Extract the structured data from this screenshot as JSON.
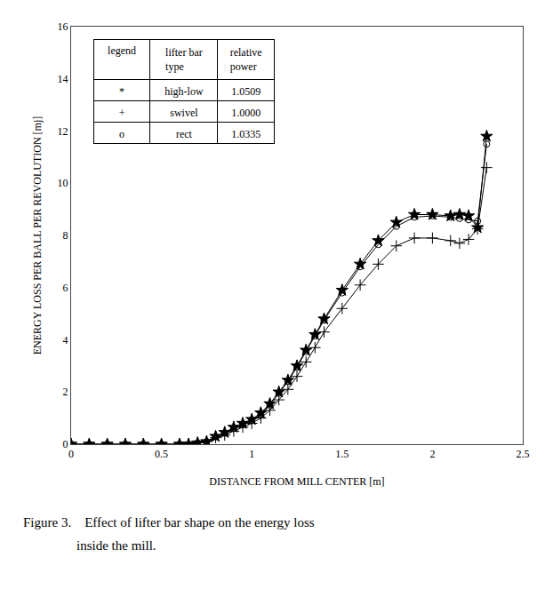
{
  "chart_data": {
    "type": "line",
    "xlabel": "DISTANCE FROM MILL CENTER [m]",
    "ylabel": "ENERGY LOSS PER BALL PER REVOLUTION [mj]",
    "xlim": [
      0,
      2.5
    ],
    "ylim": [
      0,
      16
    ],
    "xticks": [
      0,
      0.5,
      1,
      1.5,
      2,
      2.5
    ],
    "yticks": [
      0,
      2,
      4,
      6,
      8,
      10,
      12,
      14,
      16
    ],
    "grid": false,
    "color": "#000000",
    "x": [
      0.0,
      0.1,
      0.2,
      0.3,
      0.4,
      0.5,
      0.6,
      0.65,
      0.7,
      0.75,
      0.8,
      0.85,
      0.9,
      0.95,
      1.0,
      1.05,
      1.1,
      1.15,
      1.2,
      1.25,
      1.3,
      1.35,
      1.4,
      1.5,
      1.6,
      1.7,
      1.8,
      1.9,
      2.0,
      2.1,
      2.15,
      2.2,
      2.25,
      2.3
    ],
    "series": [
      {
        "marker": "star",
        "values": [
          0.0,
          0.0,
          0.0,
          0.0,
          0.0,
          0.0,
          0.0,
          0.0,
          0.05,
          0.1,
          0.3,
          0.45,
          0.65,
          0.8,
          0.95,
          1.2,
          1.55,
          2.0,
          2.45,
          3.0,
          3.6,
          4.2,
          4.8,
          5.9,
          6.9,
          7.8,
          8.5,
          8.8,
          8.8,
          8.75,
          8.8,
          8.75,
          8.3,
          11.8
        ]
      },
      {
        "marker": "plus",
        "values": [
          0.0,
          0.0,
          0.0,
          0.0,
          0.0,
          0.0,
          0.0,
          0.0,
          0.05,
          0.1,
          0.25,
          0.35,
          0.5,
          0.65,
          0.8,
          1.0,
          1.3,
          1.7,
          2.1,
          2.6,
          3.15,
          3.7,
          4.3,
          5.2,
          6.1,
          6.9,
          7.6,
          7.9,
          7.9,
          7.8,
          7.7,
          7.85,
          8.25,
          10.6
        ]
      },
      {
        "marker": "open_circle",
        "values": [
          0.0,
          0.0,
          0.0,
          0.0,
          0.0,
          0.0,
          0.0,
          0.0,
          0.05,
          0.1,
          0.28,
          0.42,
          0.6,
          0.75,
          0.9,
          1.15,
          1.5,
          1.95,
          2.4,
          2.95,
          3.55,
          4.15,
          4.75,
          5.8,
          6.8,
          7.65,
          8.35,
          8.7,
          8.75,
          8.7,
          8.65,
          8.6,
          8.55,
          11.5
        ]
      }
    ],
    "table": {
      "header": [
        "legend",
        "lifter bar\ntype",
        "relative\npower"
      ],
      "rows": [
        [
          "*",
          "high-low",
          "1.0509"
        ],
        [
          "+",
          "swivel",
          "1.0000"
        ],
        [
          "o",
          "rect",
          "1.0335"
        ]
      ]
    },
    "caption": [
      "Figure 3.    Effect of lifter bar shape on the energy loss",
      "                inside the mill."
    ]
  }
}
